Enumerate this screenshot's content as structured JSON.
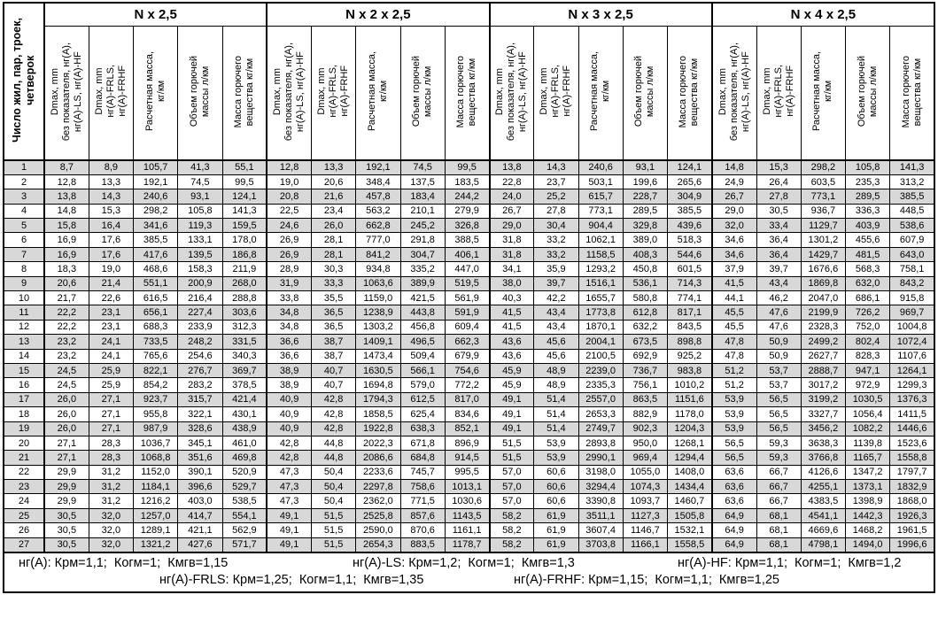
{
  "header": {
    "row_label_lines": [
      "Число жил, пар, троек,",
      "четверок"
    ],
    "groups": [
      "N x 2,5",
      "N x 2 x 2,5",
      "N x 3 x 2,5",
      "N x 4 x 2,5"
    ],
    "subcolumns": [
      {
        "name": "dmax-basic",
        "lines": [
          "Dmax, mm",
          "без показателя, нг(A),",
          "нг(A)-LS, нг(A)-HF"
        ]
      },
      {
        "name": "dmax-fr",
        "lines": [
          "Dmax, mm",
          "нг(A)-FRLS,",
          "нг(A)-FRHF"
        ]
      },
      {
        "name": "calc-mass",
        "lines": [
          "Расчетная масса,",
          "кг/км"
        ]
      },
      {
        "name": "flam-volume",
        "lines": [
          "Объем горючей",
          "массы л/км"
        ]
      },
      {
        "name": "flam-mass",
        "lines": [
          "Масса горючего",
          "вещества кг/км"
        ]
      }
    ]
  },
  "rows": [
    {
      "n": "1",
      "values": [
        "8,7",
        "8,9",
        "105,7",
        "41,3",
        "55,1",
        "12,8",
        "13,3",
        "192,1",
        "74,5",
        "99,5",
        "13,8",
        "14,3",
        "240,6",
        "93,1",
        "124,1",
        "14,8",
        "15,3",
        "298,2",
        "105,8",
        "141,3"
      ]
    },
    {
      "n": "2",
      "values": [
        "12,8",
        "13,3",
        "192,1",
        "74,5",
        "99,5",
        "19,0",
        "20,6",
        "348,4",
        "137,5",
        "183,5",
        "22,8",
        "23,7",
        "503,1",
        "199,6",
        "265,6",
        "24,9",
        "26,4",
        "603,5",
        "235,3",
        "313,2"
      ]
    },
    {
      "n": "3",
      "values": [
        "13,8",
        "14,3",
        "240,6",
        "93,1",
        "124,1",
        "20,8",
        "21,6",
        "457,8",
        "183,4",
        "244,2",
        "24,0",
        "25,2",
        "615,7",
        "228,7",
        "304,9",
        "26,7",
        "27,8",
        "773,1",
        "289,5",
        "385,5"
      ]
    },
    {
      "n": "4",
      "values": [
        "14,8",
        "15,3",
        "298,2",
        "105,8",
        "141,3",
        "22,5",
        "23,4",
        "563,2",
        "210,1",
        "279,9",
        "26,7",
        "27,8",
        "773,1",
        "289,5",
        "385,5",
        "29,0",
        "30,5",
        "936,7",
        "336,3",
        "448,5"
      ]
    },
    {
      "n": "5",
      "values": [
        "15,8",
        "16,4",
        "341,6",
        "119,3",
        "159,5",
        "24,6",
        "26,0",
        "662,8",
        "245,2",
        "326,8",
        "29,0",
        "30,4",
        "904,4",
        "329,8",
        "439,6",
        "32,0",
        "33,4",
        "1129,7",
        "403,9",
        "538,6"
      ]
    },
    {
      "n": "6",
      "values": [
        "16,9",
        "17,6",
        "385,5",
        "133,1",
        "178,0",
        "26,9",
        "28,1",
        "777,0",
        "291,8",
        "388,5",
        "31,8",
        "33,2",
        "1062,1",
        "389,0",
        "518,3",
        "34,6",
        "36,4",
        "1301,2",
        "455,6",
        "607,9"
      ]
    },
    {
      "n": "7",
      "values": [
        "16,9",
        "17,6",
        "417,6",
        "139,5",
        "186,8",
        "26,9",
        "28,1",
        "841,2",
        "304,7",
        "406,1",
        "31,8",
        "33,2",
        "1158,5",
        "408,3",
        "544,6",
        "34,6",
        "36,4",
        "1429,7",
        "481,5",
        "643,0"
      ]
    },
    {
      "n": "8",
      "values": [
        "18,3",
        "19,0",
        "468,6",
        "158,3",
        "211,9",
        "28,9",
        "30,3",
        "934,8",
        "335,2",
        "447,0",
        "34,1",
        "35,9",
        "1293,2",
        "450,8",
        "601,5",
        "37,9",
        "39,7",
        "1676,6",
        "568,3",
        "758,1"
      ]
    },
    {
      "n": "9",
      "values": [
        "20,6",
        "21,4",
        "551,1",
        "200,9",
        "268,0",
        "31,9",
        "33,3",
        "1063,6",
        "389,9",
        "519,5",
        "38,0",
        "39,7",
        "1516,1",
        "536,1",
        "714,3",
        "41,5",
        "43,4",
        "1869,8",
        "632,0",
        "843,2"
      ]
    },
    {
      "n": "10",
      "values": [
        "21,7",
        "22,6",
        "616,5",
        "216,4",
        "288,8",
        "33,8",
        "35,5",
        "1159,0",
        "421,5",
        "561,9",
        "40,3",
        "42,2",
        "1655,7",
        "580,8",
        "774,1",
        "44,1",
        "46,2",
        "2047,0",
        "686,1",
        "915,8"
      ]
    },
    {
      "n": "11",
      "values": [
        "22,2",
        "23,1",
        "656,1",
        "227,4",
        "303,6",
        "34,8",
        "36,5",
        "1238,9",
        "443,8",
        "591,9",
        "41,5",
        "43,4",
        "1773,8",
        "612,8",
        "817,1",
        "45,5",
        "47,6",
        "2199,9",
        "726,2",
        "969,7"
      ]
    },
    {
      "n": "12",
      "values": [
        "22,2",
        "23,1",
        "688,3",
        "233,9",
        "312,3",
        "34,8",
        "36,5",
        "1303,2",
        "456,8",
        "609,4",
        "41,5",
        "43,4",
        "1870,1",
        "632,2",
        "843,5",
        "45,5",
        "47,6",
        "2328,3",
        "752,0",
        "1004,8"
      ]
    },
    {
      "n": "13",
      "values": [
        "23,2",
        "24,1",
        "733,5",
        "248,2",
        "331,5",
        "36,6",
        "38,7",
        "1409,1",
        "496,5",
        "662,3",
        "43,6",
        "45,6",
        "2004,1",
        "673,5",
        "898,8",
        "47,8",
        "50,9",
        "2499,2",
        "802,4",
        "1072,4"
      ]
    },
    {
      "n": "14",
      "values": [
        "23,2",
        "24,1",
        "765,6",
        "254,6",
        "340,3",
        "36,6",
        "38,7",
        "1473,4",
        "509,4",
        "679,9",
        "43,6",
        "45,6",
        "2100,5",
        "692,9",
        "925,2",
        "47,8",
        "50,9",
        "2627,7",
        "828,3",
        "1107,6"
      ]
    },
    {
      "n": "15",
      "values": [
        "24,5",
        "25,9",
        "822,1",
        "276,7",
        "369,7",
        "38,9",
        "40,7",
        "1630,5",
        "566,1",
        "754,6",
        "45,9",
        "48,9",
        "2239,0",
        "736,7",
        "983,8",
        "51,2",
        "53,7",
        "2888,7",
        "947,1",
        "1264,1"
      ]
    },
    {
      "n": "16",
      "values": [
        "24,5",
        "25,9",
        "854,2",
        "283,2",
        "378,5",
        "38,9",
        "40,7",
        "1694,8",
        "579,0",
        "772,2",
        "45,9",
        "48,9",
        "2335,3",
        "756,1",
        "1010,2",
        "51,2",
        "53,7",
        "3017,2",
        "972,9",
        "1299,3"
      ]
    },
    {
      "n": "17",
      "values": [
        "26,0",
        "27,1",
        "923,7",
        "315,7",
        "421,4",
        "40,9",
        "42,8",
        "1794,3",
        "612,5",
        "817,0",
        "49,1",
        "51,4",
        "2557,0",
        "863,5",
        "1151,6",
        "53,9",
        "56,5",
        "3199,2",
        "1030,5",
        "1376,3"
      ]
    },
    {
      "n": "18",
      "values": [
        "26,0",
        "27,1",
        "955,8",
        "322,1",
        "430,1",
        "40,9",
        "42,8",
        "1858,5",
        "625,4",
        "834,6",
        "49,1",
        "51,4",
        "2653,3",
        "882,9",
        "1178,0",
        "53,9",
        "56,5",
        "3327,7",
        "1056,4",
        "1411,5"
      ]
    },
    {
      "n": "19",
      "values": [
        "26,0",
        "27,1",
        "987,9",
        "328,6",
        "438,9",
        "40,9",
        "42,8",
        "1922,8",
        "638,3",
        "852,1",
        "49,1",
        "51,4",
        "2749,7",
        "902,3",
        "1204,3",
        "53,9",
        "56,5",
        "3456,2",
        "1082,2",
        "1446,6"
      ]
    },
    {
      "n": "20",
      "values": [
        "27,1",
        "28,3",
        "1036,7",
        "345,1",
        "461,0",
        "42,8",
        "44,8",
        "2022,3",
        "671,8",
        "896,9",
        "51,5",
        "53,9",
        "2893,8",
        "950,0",
        "1268,1",
        "56,5",
        "59,3",
        "3638,3",
        "1139,8",
        "1523,6"
      ]
    },
    {
      "n": "21",
      "values": [
        "27,1",
        "28,3",
        "1068,8",
        "351,6",
        "469,8",
        "42,8",
        "44,8",
        "2086,6",
        "684,8",
        "914,5",
        "51,5",
        "53,9",
        "2990,1",
        "969,4",
        "1294,4",
        "56,5",
        "59,3",
        "3766,8",
        "1165,7",
        "1558,8"
      ]
    },
    {
      "n": "22",
      "values": [
        "29,9",
        "31,2",
        "1152,0",
        "390,1",
        "520,9",
        "47,3",
        "50,4",
        "2233,6",
        "745,7",
        "995,5",
        "57,0",
        "60,6",
        "3198,0",
        "1055,0",
        "1408,0",
        "63,6",
        "66,7",
        "4126,6",
        "1347,2",
        "1797,7"
      ]
    },
    {
      "n": "23",
      "values": [
        "29,9",
        "31,2",
        "1184,1",
        "396,6",
        "529,7",
        "47,3",
        "50,4",
        "2297,8",
        "758,6",
        "1013,1",
        "57,0",
        "60,6",
        "3294,4",
        "1074,3",
        "1434,4",
        "63,6",
        "66,7",
        "4255,1",
        "1373,1",
        "1832,9"
      ]
    },
    {
      "n": "24",
      "values": [
        "29,9",
        "31,2",
        "1216,2",
        "403,0",
        "538,5",
        "47,3",
        "50,4",
        "2362,0",
        "771,5",
        "1030,6",
        "57,0",
        "60,6",
        "3390,8",
        "1093,7",
        "1460,7",
        "63,6",
        "66,7",
        "4383,5",
        "1398,9",
        "1868,0"
      ]
    },
    {
      "n": "25",
      "values": [
        "30,5",
        "32,0",
        "1257,0",
        "414,7",
        "554,1",
        "49,1",
        "51,5",
        "2525,8",
        "857,6",
        "1143,5",
        "58,2",
        "61,9",
        "3511,1",
        "1127,3",
        "1505,8",
        "64,9",
        "68,1",
        "4541,1",
        "1442,3",
        "1926,3"
      ]
    },
    {
      "n": "26",
      "values": [
        "30,5",
        "32,0",
        "1289,1",
        "421,1",
        "562,9",
        "49,1",
        "51,5",
        "2590,0",
        "870,6",
        "1161,1",
        "58,2",
        "61,9",
        "3607,4",
        "1146,7",
        "1532,1",
        "64,9",
        "68,1",
        "4669,6",
        "1468,2",
        "1961,5"
      ]
    },
    {
      "n": "27",
      "values": [
        "30,5",
        "32,0",
        "1321,2",
        "427,6",
        "571,7",
        "49,1",
        "51,5",
        "2654,3",
        "883,5",
        "1178,7",
        "58,2",
        "61,9",
        "3703,8",
        "1166,1",
        "1558,5",
        "64,9",
        "68,1",
        "4798,1",
        "1494,0",
        "1996,6"
      ]
    }
  ],
  "footer": {
    "line1": [
      "нг(A): Крм=1,1;  Когм=1;  Кмгв=1,15",
      "нг(A)-LS: Крм=1,2;  Когм=1;  Кмгв=1,3",
      "нг(A)-HF: Крм=1,1;  Когм=1;  Кмгв=1,2"
    ],
    "line2": [
      "нг(A)-FRLS: Крм=1,25;  Когм=1,1;  Кмгв=1,35",
      "нг(A)-FRHF: Крм=1,15;  Когм=1,1;  Кмгв=1,25"
    ]
  }
}
